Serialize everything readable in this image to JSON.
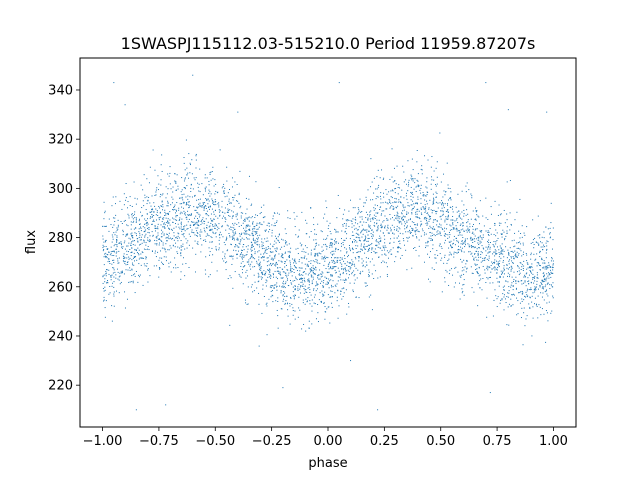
{
  "chart_data": {
    "type": "scatter",
    "title": "1SWASPJ115112.03-515210.0 Period 11959.87207s",
    "xlabel": "phase",
    "ylabel": "flux",
    "xlim": [
      -1.1,
      1.1
    ],
    "ylim": [
      203,
      353
    ],
    "x_ticks": [
      "−1.00",
      "−0.75",
      "−0.50",
      "−0.25",
      "0.00",
      "0.25",
      "0.50",
      "0.75",
      "1.00"
    ],
    "x_tick_values": [
      -1.0,
      -0.75,
      -0.5,
      -0.25,
      0.0,
      0.25,
      0.5,
      0.75,
      1.0
    ],
    "y_ticks": [
      "220",
      "240",
      "260",
      "280",
      "300",
      "320",
      "340"
    ],
    "y_tick_values": [
      220,
      240,
      260,
      280,
      300,
      320,
      340
    ],
    "grid": false,
    "legend": "none",
    "marker_color": "#1f77b4",
    "series": [
      {
        "profile": {
          "phase": [
            -1.0,
            -0.9,
            -0.8,
            -0.7,
            -0.6,
            -0.5,
            -0.4,
            -0.3,
            -0.2,
            -0.1,
            0.0,
            0.1,
            0.2,
            0.3,
            0.4,
            0.5,
            0.6,
            0.7,
            0.8,
            0.9,
            1.0
          ],
          "flux": [
            270,
            276,
            282,
            288,
            291,
            288,
            281,
            274,
            268,
            265,
            267,
            274,
            282,
            289,
            291,
            287,
            280,
            274,
            268,
            265,
            268
          ]
        },
        "scatter_sigma": 10,
        "point_count": 4200,
        "outliers": [
          [
            -0.95,
            343
          ],
          [
            -0.9,
            334
          ],
          [
            -0.6,
            346
          ],
          [
            -0.4,
            331
          ],
          [
            0.05,
            343
          ],
          [
            0.7,
            343
          ],
          [
            0.8,
            332
          ],
          [
            0.97,
            331
          ],
          [
            -0.72,
            212
          ],
          [
            0.22,
            210
          ],
          [
            0.1,
            230
          ],
          [
            -0.85,
            210
          ],
          [
            -0.2,
            219
          ],
          [
            0.72,
            217
          ]
        ]
      }
    ]
  }
}
